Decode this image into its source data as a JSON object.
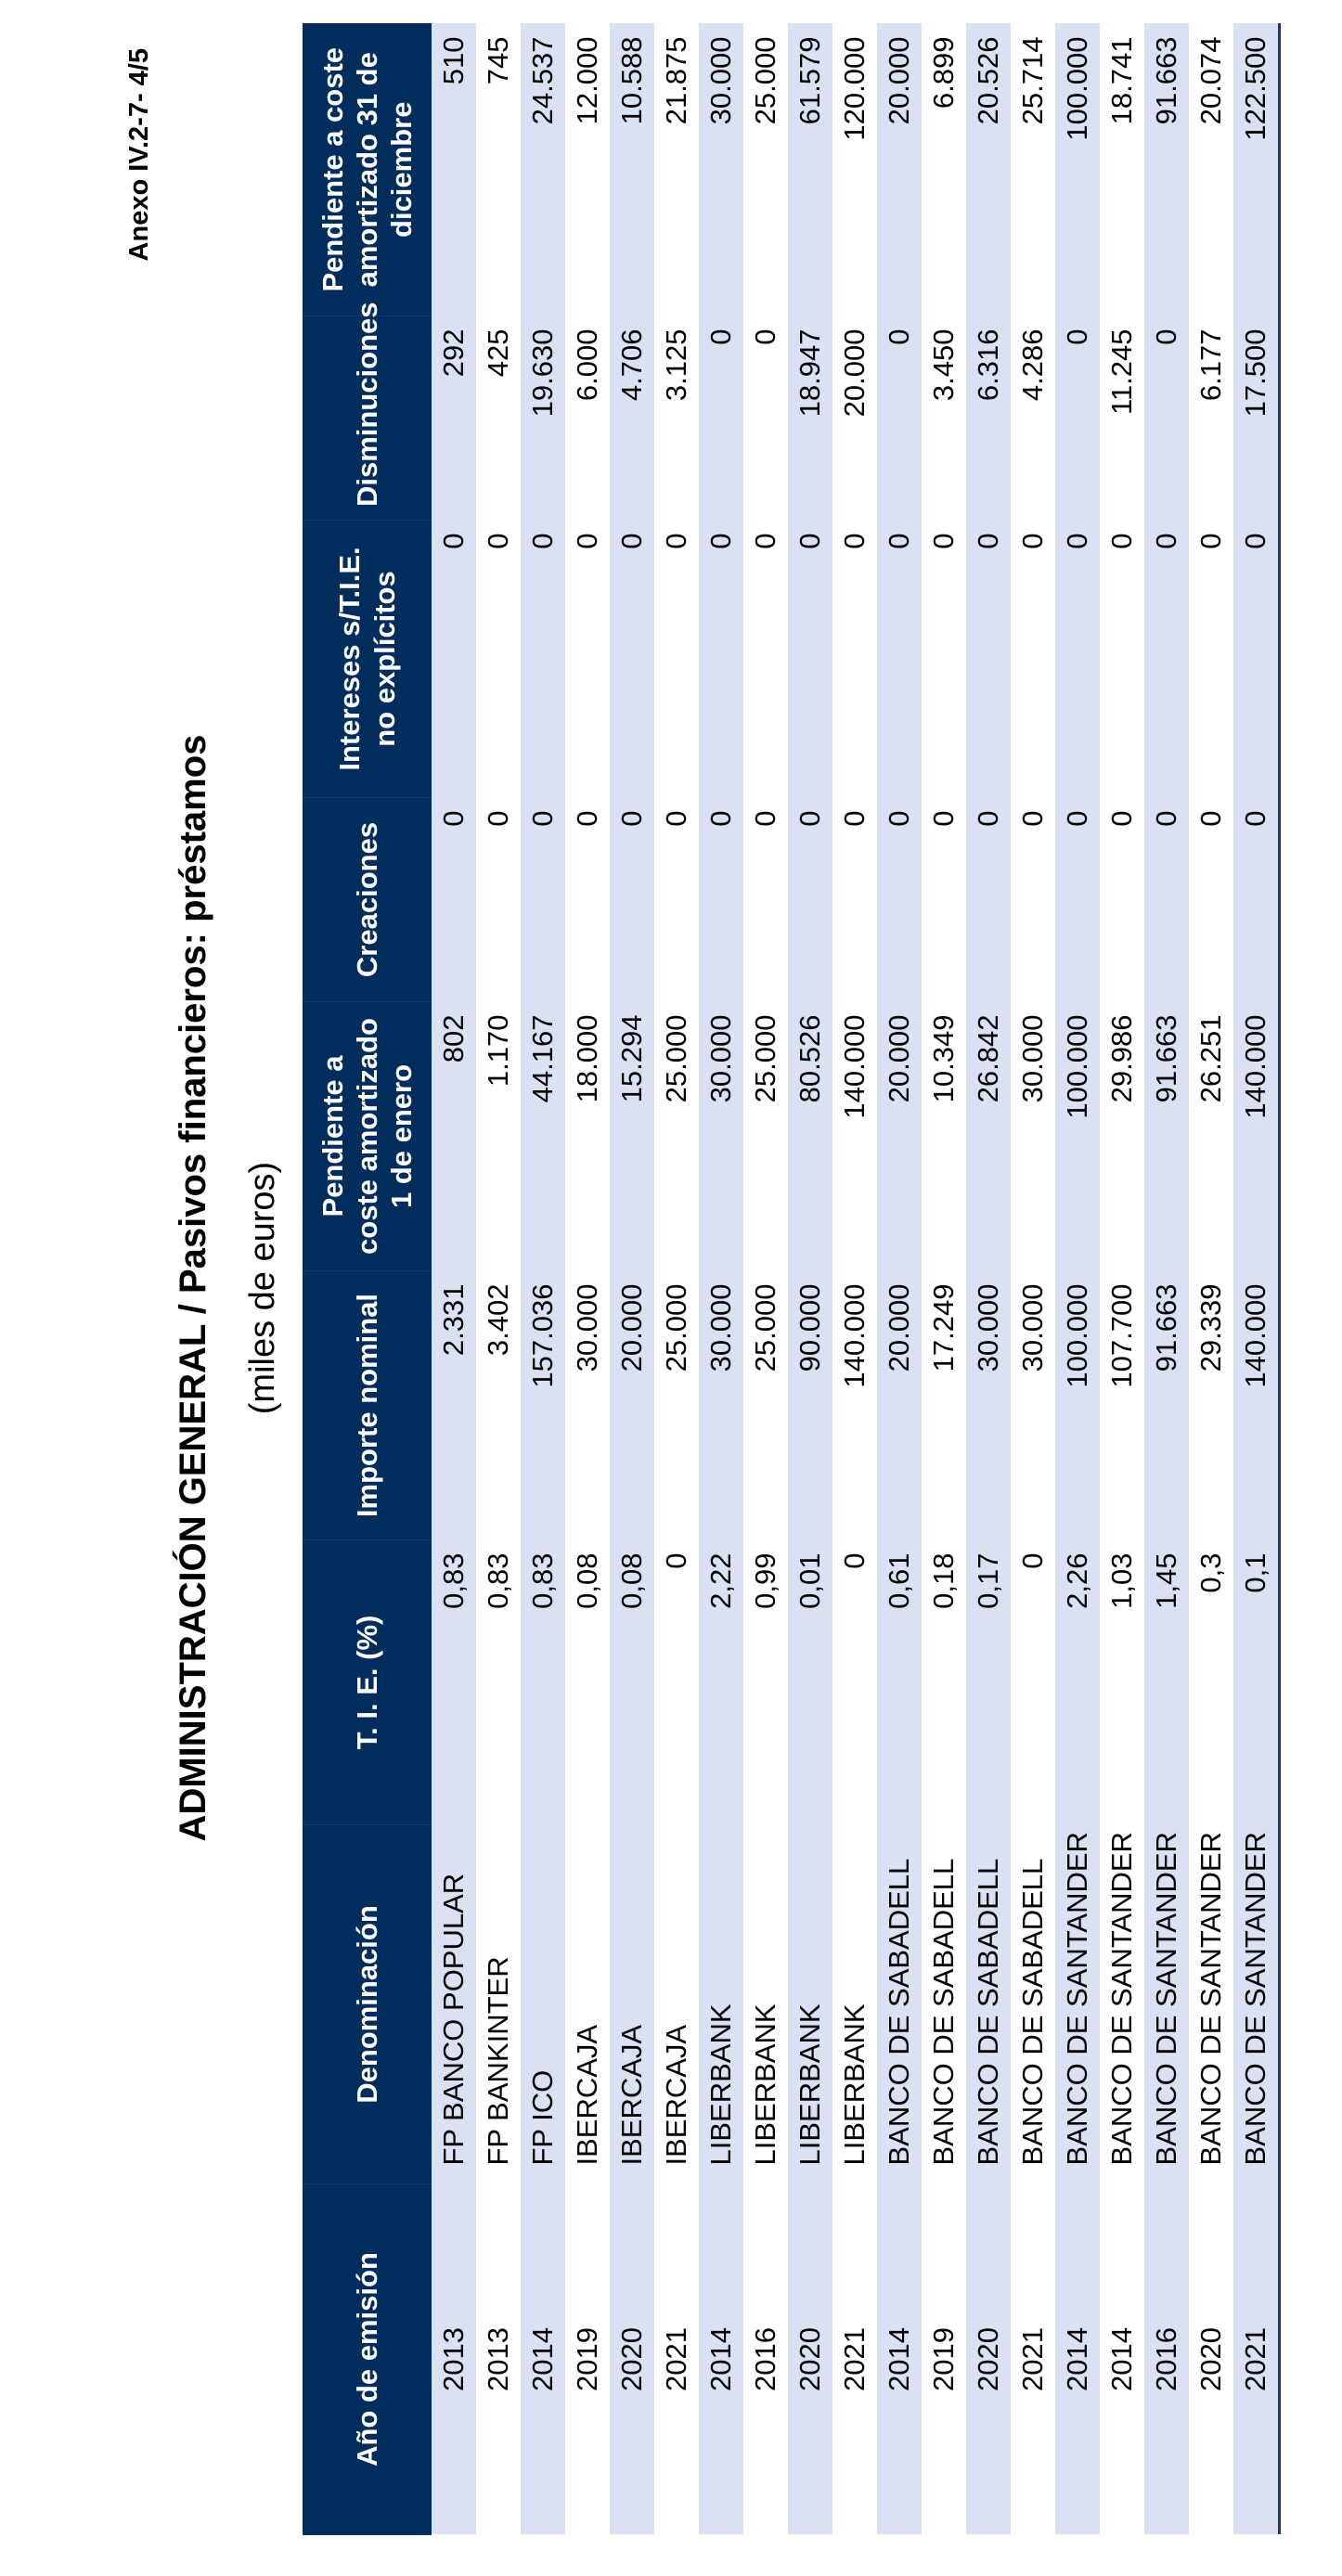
{
  "header": {
    "annex": "Anexo IV.2-7- 4/5",
    "title": "ADMINISTRACIÓN GENERAL  /  Pasivos financieros: préstamos",
    "subtitle": "(miles de euros)"
  },
  "table": {
    "columns": [
      "Año de emisión",
      "Denominación",
      "T. I. E. (%)",
      "Importe nominal",
      "Pendiente a coste amortizado 1 de enero",
      "Creaciones",
      "Intereses s/T.I.E. no explícitos",
      "Disminuciones",
      "Pendiente a coste amortizado 31 de diciembre"
    ],
    "rows": [
      [
        "2013",
        "FP BANCO POPULAR",
        "0,83",
        "2.331",
        "802",
        "0",
        "0",
        "292",
        "510"
      ],
      [
        "2013",
        "FP BANKINTER",
        "0,83",
        "3.402",
        "1.170",
        "0",
        "0",
        "425",
        "745"
      ],
      [
        "2014",
        "FP ICO",
        "0,83",
        "157.036",
        "44.167",
        "0",
        "0",
        "19.630",
        "24.537"
      ],
      [
        "2019",
        "IBERCAJA",
        "0,08",
        "30.000",
        "18.000",
        "0",
        "0",
        "6.000",
        "12.000"
      ],
      [
        "2020",
        "IBERCAJA",
        "0,08",
        "20.000",
        "15.294",
        "0",
        "0",
        "4.706",
        "10.588"
      ],
      [
        "2021",
        "IBERCAJA",
        "0",
        "25.000",
        "25.000",
        "0",
        "0",
        "3.125",
        "21.875"
      ],
      [
        "2014",
        "LIBERBANK",
        "2,22",
        "30.000",
        "30.000",
        "0",
        "0",
        "0",
        "30.000"
      ],
      [
        "2016",
        "LIBERBANK",
        "0,99",
        "25.000",
        "25.000",
        "0",
        "0",
        "0",
        "25.000"
      ],
      [
        "2020",
        "LIBERBANK",
        "0,01",
        "90.000",
        "80.526",
        "0",
        "0",
        "18.947",
        "61.579"
      ],
      [
        "2021",
        "LIBERBANK",
        "0",
        "140.000",
        "140.000",
        "0",
        "0",
        "20.000",
        "120.000"
      ],
      [
        "2014",
        "BANCO DE SABADELL",
        "0,61",
        "20.000",
        "20.000",
        "0",
        "0",
        "0",
        "20.000"
      ],
      [
        "2019",
        "BANCO DE SABADELL",
        "0,18",
        "17.249",
        "10.349",
        "0",
        "0",
        "3.450",
        "6.899"
      ],
      [
        "2020",
        "BANCO DE SABADELL",
        "0,17",
        "30.000",
        "26.842",
        "0",
        "0",
        "6.316",
        "20.526"
      ],
      [
        "2021",
        "BANCO DE SABADELL",
        "0",
        "30.000",
        "30.000",
        "0",
        "0",
        "4.286",
        "25.714"
      ],
      [
        "2014",
        "BANCO DE SANTANDER",
        "2,26",
        "100.000",
        "100.000",
        "0",
        "0",
        "0",
        "100.000"
      ],
      [
        "2014",
        "BANCO DE SANTANDER",
        "1,03",
        "107.700",
        "29.986",
        "0",
        "0",
        "11.245",
        "18.741"
      ],
      [
        "2016",
        "BANCO DE SANTANDER",
        "1,45",
        "91.663",
        "91.663",
        "0",
        "0",
        "0",
        "91.663"
      ],
      [
        "2020",
        "BANCO DE SANTANDER",
        "0,3",
        "29.339",
        "26.251",
        "0",
        "0",
        "6.177",
        "20.074"
      ],
      [
        "2021",
        "BANCO DE SANTANDER",
        "0,1",
        "140.000",
        "140.000",
        "0",
        "0",
        "17.500",
        "122.500"
      ]
    ]
  }
}
